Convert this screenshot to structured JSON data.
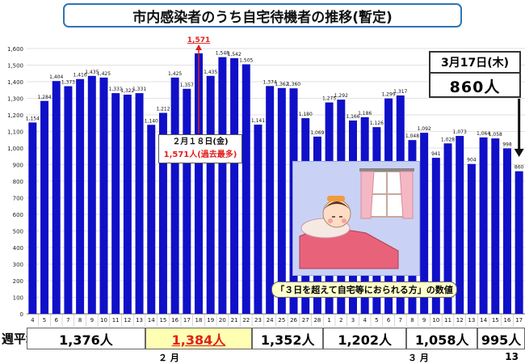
{
  "title": "市内感染者のうち自宅待機者の推移(暫定)",
  "callout": {
    "date": "3月17日(木)",
    "value": "860人"
  },
  "max_note": {
    "date": "２月１８日(金)",
    "value": "1,571人(過去最多)"
  },
  "peak_label": "1,571",
  "caption": "「３日を超えて自宅等におられる方」の数値",
  "weekly": {
    "label": "週平均：",
    "items": [
      {
        "text": "1,376人",
        "highlight": false
      },
      {
        "text": "1,384人",
        "highlight": true
      },
      {
        "text": "1,352人",
        "highlight": false
      },
      {
        "text": "1,202人",
        "highlight": false
      },
      {
        "text": "1,058人",
        "highlight": false
      },
      {
        "text": "995人",
        "highlight": false
      }
    ]
  },
  "months": {
    "feb": "２ 月",
    "mar": "３ 月"
  },
  "page_number": "13",
  "colors": {
    "bar": "#1010c8",
    "peak": "#e0201b",
    "title_border": "#2e75b6"
  },
  "chart_data": {
    "type": "bar",
    "categories": [
      "4",
      "5",
      "6",
      "7",
      "8",
      "9",
      "10",
      "11",
      "12",
      "13",
      "14",
      "15",
      "16",
      "17",
      "18",
      "19",
      "20",
      "21",
      "22",
      "23",
      "24",
      "25",
      "26",
      "27",
      "28",
      "1",
      "2",
      "3",
      "4",
      "5",
      "6",
      "7",
      "8",
      "9",
      "10",
      "11",
      "12",
      "13",
      "14",
      "15",
      "16",
      "17"
    ],
    "values": [
      1154,
      1284,
      1404,
      1373,
      1416,
      1435,
      1425,
      1331,
      1322,
      1331,
      1140,
      1212,
      1425,
      1357,
      1571,
      1435,
      1548,
      1542,
      1505,
      1141,
      1374,
      1362,
      1360,
      1180,
      1069,
      1275,
      1292,
      1166,
      1186,
      1126,
      1299,
      1317,
      1048,
      1092,
      941,
      1028,
      1073,
      904,
      1064,
      1058,
      998,
      860
    ],
    "data_labels": [
      "1,154",
      "1,284",
      "1,404",
      "1,373",
      "1,416",
      "1,435",
      "1,425",
      "1,331",
      "1,322",
      "1,331",
      "1,140",
      "1,212",
      "1,425",
      "1,357",
      "",
      "1,435",
      "1,548",
      "1,542",
      "1,505",
      "1,141",
      "1,374",
      "1,362",
      "1,360",
      "1,180",
      "1,069",
      "1,275",
      "1,292",
      "1,166",
      "1,186",
      "1,126",
      "1,299",
      "1,317",
      "1,048",
      "1,092",
      "941",
      "1,028",
      "1,073",
      "904",
      "1,064",
      "1,058",
      "998",
      "860"
    ],
    "yticks": [
      "0",
      "100",
      "200",
      "300",
      "400",
      "500",
      "600",
      "700",
      "800",
      "900",
      "1,000",
      "1,100",
      "1,200",
      "1,300",
      "1,400",
      "1,500",
      "1,600"
    ],
    "ylim": [
      0,
      1600
    ],
    "highlight_index": 14,
    "title": "",
    "xlabel": "",
    "ylabel": ""
  }
}
